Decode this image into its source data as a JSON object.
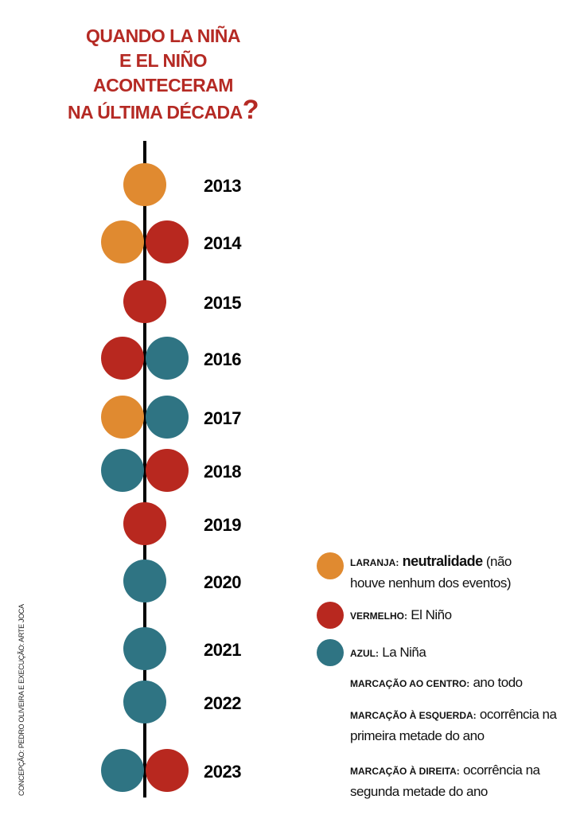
{
  "title": {
    "lines": [
      "QUANDO LA NIÑA",
      "E EL NIÑO ACONTECERAM",
      "NA ÚLTIMA DÉCADA"
    ],
    "mark": "?",
    "color": "#b52a24"
  },
  "timeline": [
    {
      "year": "2013",
      "center": "#e08a30"
    },
    {
      "year": "2014",
      "left": "#e08a30",
      "right": "#b8281f"
    },
    {
      "year": "2015",
      "center": "#b8281f"
    },
    {
      "year": "2016",
      "left": "#b8281f",
      "right": "#2f7483"
    },
    {
      "year": "2017",
      "left": "#e08a30",
      "right": "#2f7483"
    },
    {
      "year": "2018",
      "left": "#2f7483",
      "right": "#b8281f"
    },
    {
      "year": "2019",
      "center": "#b8281f"
    },
    {
      "year": "2020",
      "center": "#2f7483"
    },
    {
      "year": "2021",
      "center": "#2f7483"
    },
    {
      "year": "2022",
      "center": "#2f7483"
    },
    {
      "year": "2023",
      "left": "#2f7483",
      "right": "#b8281f"
    }
  ],
  "legend": [
    {
      "key": "LARANJA:",
      "emph": "neutralidade",
      "text": "(não houve nenhum dos eventos)",
      "color": "#e08a30"
    },
    {
      "key": "VERMELHO:",
      "text": "El Niño",
      "color": "#b8281f"
    },
    {
      "key": "AZUL:",
      "text": "La Niña",
      "color": "#2f7483"
    }
  ],
  "notes": [
    {
      "key": "MARCAÇÃO AO CENTRO:",
      "text": "ano todo"
    },
    {
      "key": "MARCAÇÃO À ESQUERDA:",
      "text": "ocorrência na primeira metade do ano"
    },
    {
      "key": "MARCAÇÃO À DIREITA:",
      "text": "ocorrência na segunda metade do ano"
    }
  ],
  "credit": "CONCEPÇÃO: PEDRO OLIVEIRA E EXECUÇÃO: ARTE JOCA"
}
